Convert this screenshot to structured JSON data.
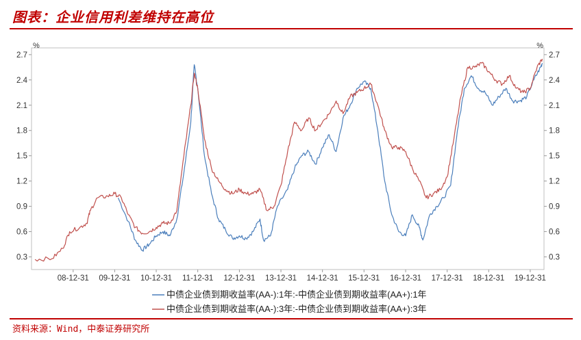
{
  "header": {
    "title": "图表：企业信用利差维持在高位"
  },
  "footer": {
    "source": "资料来源：Wind，中泰证券研究所"
  },
  "chart_data": {
    "type": "line",
    "title": "图表：企业信用利差维持在高位",
    "unit_left": "%",
    "unit_right": "%",
    "ylim": [
      0.15,
      2.78
    ],
    "y_ticks": [
      0.3,
      0.6,
      0.9,
      1.2,
      1.5,
      1.8,
      2.1,
      2.4,
      2.7
    ],
    "y_tick_labels": [
      "0.3",
      "0.6",
      "0.9",
      "1.2",
      "1.5",
      "1.8",
      "2.1",
      "2.4",
      "2.7"
    ],
    "xlim": [
      "2007-12-31",
      "2020-04-30"
    ],
    "x_ticks": [
      "2008-12-31",
      "2009-12-31",
      "2010-12-31",
      "2011-12-31",
      "2012-12-31",
      "2013-12-31",
      "2014-12-31",
      "2015-12-31",
      "2016-12-31",
      "2017-12-31",
      "2018-12-31",
      "2019-12-31"
    ],
    "x_tick_labels": [
      "08-12-31",
      "09-12-31",
      "10-12-31",
      "11-12-31",
      "12-12-31",
      "13-12-31",
      "14-12-31",
      "15-12-31",
      "16-12-31",
      "17-12-31",
      "18-12-31",
      "19-12-31"
    ],
    "grid": false,
    "legend_position": "bottom",
    "series": [
      {
        "name": "中债企业债到期收益率(AA-):1年:-中债企业债到期收益率(AA+):1年",
        "color": "#4a7ebb",
        "points": [
          [
            "2010-01-31",
            1.0
          ],
          [
            "2010-04-30",
            0.72
          ],
          [
            "2010-06-30",
            0.5
          ],
          [
            "2010-08-31",
            0.38
          ],
          [
            "2010-10-31",
            0.45
          ],
          [
            "2010-12-31",
            0.55
          ],
          [
            "2011-02-28",
            0.6
          ],
          [
            "2011-04-30",
            0.55
          ],
          [
            "2011-06-30",
            0.75
          ],
          [
            "2011-08-31",
            1.3
          ],
          [
            "2011-10-31",
            1.9
          ],
          [
            "2011-11-30",
            2.58
          ],
          [
            "2011-12-31",
            2.3
          ],
          [
            "2012-02-28",
            1.5
          ],
          [
            "2012-04-30",
            1.05
          ],
          [
            "2012-06-30",
            0.75
          ],
          [
            "2012-08-31",
            0.62
          ],
          [
            "2012-10-31",
            0.52
          ],
          [
            "2012-12-31",
            0.55
          ],
          [
            "2013-02-28",
            0.52
          ],
          [
            "2013-04-30",
            0.6
          ],
          [
            "2013-06-30",
            0.75
          ],
          [
            "2013-07-31",
            0.5
          ],
          [
            "2013-09-30",
            0.55
          ],
          [
            "2013-11-30",
            0.9
          ],
          [
            "2014-02-28",
            1.1
          ],
          [
            "2014-04-30",
            1.35
          ],
          [
            "2014-06-30",
            1.5
          ],
          [
            "2014-08-31",
            1.55
          ],
          [
            "2014-10-31",
            1.4
          ],
          [
            "2014-12-31",
            1.6
          ],
          [
            "2015-02-28",
            1.75
          ],
          [
            "2015-04-30",
            1.55
          ],
          [
            "2015-06-30",
            1.95
          ],
          [
            "2015-08-31",
            2.1
          ],
          [
            "2015-10-31",
            2.3
          ],
          [
            "2015-12-31",
            2.38
          ],
          [
            "2016-02-29",
            2.3
          ],
          [
            "2016-04-30",
            1.8
          ],
          [
            "2016-06-30",
            1.2
          ],
          [
            "2016-08-31",
            0.8
          ],
          [
            "2016-10-31",
            0.6
          ],
          [
            "2016-12-31",
            0.55
          ],
          [
            "2017-02-28",
            0.8
          ],
          [
            "2017-04-30",
            0.65
          ],
          [
            "2017-05-31",
            0.5
          ],
          [
            "2017-07-31",
            0.8
          ],
          [
            "2017-09-30",
            0.9
          ],
          [
            "2017-11-30",
            1.0
          ],
          [
            "2018-01-31",
            1.15
          ],
          [
            "2018-03-31",
            1.8
          ],
          [
            "2018-05-31",
            2.3
          ],
          [
            "2018-07-31",
            2.45
          ],
          [
            "2018-09-30",
            2.3
          ],
          [
            "2018-11-30",
            2.25
          ],
          [
            "2019-01-31",
            2.1
          ],
          [
            "2019-03-31",
            2.2
          ],
          [
            "2019-05-31",
            2.3
          ],
          [
            "2019-07-31",
            2.15
          ],
          [
            "2019-09-30",
            2.15
          ],
          [
            "2019-11-30",
            2.2
          ],
          [
            "2020-01-31",
            2.4
          ],
          [
            "2020-03-31",
            2.55
          ],
          [
            "2020-04-15",
            2.6
          ]
        ]
      },
      {
        "name": "中债企业债到期收益率(AA-):3年:-中债企业债到期收益率(AA+):3年",
        "color": "#c0504d",
        "points": [
          [
            "2008-01-31",
            0.27
          ],
          [
            "2008-06-30",
            0.28
          ],
          [
            "2008-09-30",
            0.4
          ],
          [
            "2008-11-30",
            0.6
          ],
          [
            "2009-02-28",
            0.65
          ],
          [
            "2009-04-30",
            0.7
          ],
          [
            "2009-05-31",
            0.85
          ],
          [
            "2009-07-31",
            1.0
          ],
          [
            "2009-10-31",
            1.02
          ],
          [
            "2009-12-31",
            1.05
          ],
          [
            "2010-02-28",
            1.0
          ],
          [
            "2010-04-30",
            0.8
          ],
          [
            "2010-06-30",
            0.65
          ],
          [
            "2010-08-31",
            0.58
          ],
          [
            "2010-10-31",
            0.6
          ],
          [
            "2010-12-31",
            0.65
          ],
          [
            "2011-02-28",
            0.7
          ],
          [
            "2011-04-30",
            0.7
          ],
          [
            "2011-06-30",
            0.85
          ],
          [
            "2011-08-31",
            1.5
          ],
          [
            "2011-10-31",
            2.1
          ],
          [
            "2011-11-30",
            2.48
          ],
          [
            "2011-12-31",
            2.3
          ],
          [
            "2012-02-28",
            1.7
          ],
          [
            "2012-04-30",
            1.35
          ],
          [
            "2012-06-30",
            1.2
          ],
          [
            "2012-08-31",
            1.1
          ],
          [
            "2012-10-31",
            1.05
          ],
          [
            "2012-12-31",
            1.1
          ],
          [
            "2013-02-28",
            1.05
          ],
          [
            "2013-04-30",
            1.05
          ],
          [
            "2013-06-30",
            1.1
          ],
          [
            "2013-08-31",
            0.85
          ],
          [
            "2013-10-31",
            0.9
          ],
          [
            "2013-12-31",
            1.15
          ],
          [
            "2014-02-28",
            1.55
          ],
          [
            "2014-04-30",
            1.9
          ],
          [
            "2014-06-30",
            1.8
          ],
          [
            "2014-08-31",
            1.95
          ],
          [
            "2014-10-31",
            1.8
          ],
          [
            "2014-12-31",
            1.9
          ],
          [
            "2015-02-28",
            2.0
          ],
          [
            "2015-04-30",
            2.15
          ],
          [
            "2015-06-30",
            2.0
          ],
          [
            "2015-08-31",
            2.2
          ],
          [
            "2015-10-31",
            2.25
          ],
          [
            "2015-12-31",
            2.3
          ],
          [
            "2016-02-29",
            2.35
          ],
          [
            "2016-04-30",
            2.1
          ],
          [
            "2016-06-30",
            1.8
          ],
          [
            "2016-08-31",
            1.6
          ],
          [
            "2016-10-31",
            1.6
          ],
          [
            "2016-12-31",
            1.55
          ],
          [
            "2017-02-28",
            1.35
          ],
          [
            "2017-04-30",
            1.2
          ],
          [
            "2017-06-30",
            1.0
          ],
          [
            "2017-08-31",
            1.05
          ],
          [
            "2017-10-31",
            1.1
          ],
          [
            "2017-12-31",
            1.25
          ],
          [
            "2018-02-28",
            1.7
          ],
          [
            "2018-04-30",
            2.2
          ],
          [
            "2018-06-30",
            2.55
          ],
          [
            "2018-08-31",
            2.55
          ],
          [
            "2018-10-31",
            2.6
          ],
          [
            "2018-12-31",
            2.5
          ],
          [
            "2019-02-28",
            2.4
          ],
          [
            "2019-04-30",
            2.35
          ],
          [
            "2019-06-30",
            2.45
          ],
          [
            "2019-08-31",
            2.3
          ],
          [
            "2019-10-31",
            2.25
          ],
          [
            "2019-12-31",
            2.3
          ],
          [
            "2020-02-29",
            2.55
          ],
          [
            "2020-04-15",
            2.65
          ]
        ]
      }
    ]
  }
}
